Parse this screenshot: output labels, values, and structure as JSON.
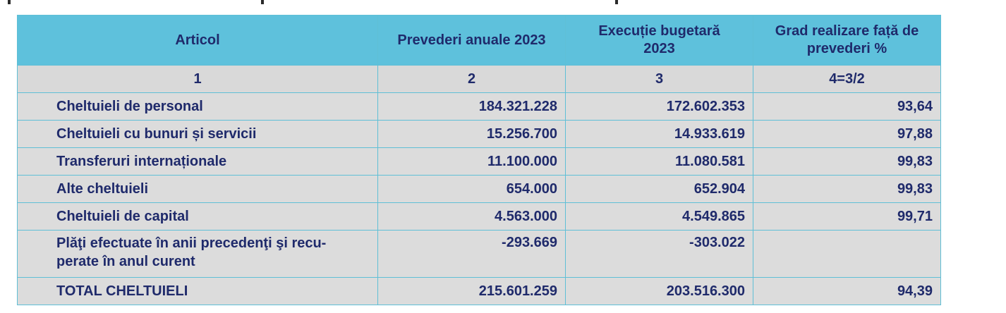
{
  "table": {
    "headers": {
      "articol": "Articol",
      "prevederi": "Prevederi anuale 2023",
      "executie": "Execuție bugetară 2023",
      "grad": "Grad realizare față de prevederi %"
    },
    "index_row": {
      "c1": "1",
      "c2": "2",
      "c3": "3",
      "c4": "4=3/2"
    },
    "rows": [
      {
        "label": "Cheltuieli de personal",
        "prevederi": "184.321.228",
        "executie": "172.602.353",
        "grad": "93,64"
      },
      {
        "label": "Cheltuieli cu bunuri și servicii",
        "prevederi": "15.256.700",
        "executie": "14.933.619",
        "grad": "97,88"
      },
      {
        "label": "Transferuri internaționale",
        "prevederi": "11.100.000",
        "executie": "11.080.581",
        "grad": "99,83"
      },
      {
        "label": "Alte cheltuieli",
        "prevederi": "654.000",
        "executie": "652.904",
        "grad": "99,83"
      },
      {
        "label": "Cheltuieli de capital",
        "prevederi": "4.563.000",
        "executie": "4.549.865",
        "grad": "99,71"
      },
      {
        "label": "Plăţi efectuate în anii precedenţi şi recu-perate în anul curent",
        "prevederi": "-293.669",
        "executie": "-303.022",
        "grad": ""
      }
    ],
    "total": {
      "label": "TOTAL CHELTUIELI",
      "prevederi": "215.601.259",
      "executie": "203.516.300",
      "grad": "94,39"
    }
  },
  "colors": {
    "header_bg": "#5ec1dc",
    "row_bg": "#dcdcdc",
    "text": "#1f2a6b",
    "border": "#5fbfd6"
  }
}
